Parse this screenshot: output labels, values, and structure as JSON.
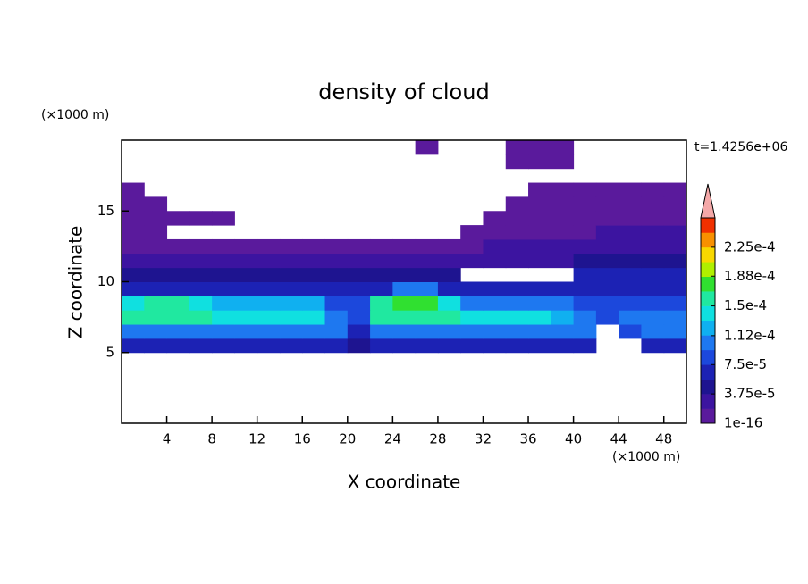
{
  "chart_data": {
    "type": "contour",
    "title": "density of cloud",
    "x_label": "X coordinate",
    "y_label": "Z coordinate",
    "x_unit": "(×1000 m)",
    "y_unit": "(×1000 m)",
    "annotation": "t=1.4256e+06",
    "xlim": [
      0,
      50
    ],
    "ylim": [
      0,
      20
    ],
    "xticks": [
      4,
      8,
      12,
      16,
      20,
      24,
      28,
      32,
      36,
      40,
      44,
      48
    ],
    "yticks": [
      5,
      10,
      15
    ],
    "colorbar": {
      "clim": [
        0,
        0.0002625
      ],
      "ticks": [
        {
          "value": 1e-16,
          "label": "1e-16"
        },
        {
          "value": 3.75e-05,
          "label": "3.75e-5"
        },
        {
          "value": 7.5e-05,
          "label": "7.5e-5"
        },
        {
          "value": 0.000112,
          "label": "1.12e-4"
        },
        {
          "value": 0.00015,
          "label": "1.5e-4"
        },
        {
          "value": 0.000188,
          "label": "1.88e-4"
        },
        {
          "value": 0.000225,
          "label": "2.25e-4"
        }
      ],
      "colors": [
        "#5a1a9c",
        "#3c14a0",
        "#1e1490",
        "#1c22b4",
        "#1c48dc",
        "#1e78f0",
        "#10b0f0",
        "#10e0e0",
        "#20e8a0",
        "#30e030",
        "#b0f000",
        "#f8d800",
        "#f89000",
        "#f03000"
      ],
      "extend_color": "#f4a8a8"
    },
    "field": {
      "x": [
        1,
        3,
        5,
        7,
        9,
        11,
        13,
        15,
        17,
        19,
        21,
        23,
        25,
        27,
        29,
        31,
        33,
        35,
        37,
        39,
        41,
        43,
        45,
        47,
        49
      ],
      "z": [
        5.5,
        6.5,
        7.5,
        8.5,
        9.5,
        10.5,
        11.5,
        12.5,
        13.5,
        14.5,
        15.5,
        16.5,
        17.5,
        18.5,
        19.5
      ],
      "values": [
        [
          6.5e-05,
          6.5e-05,
          6.5e-05,
          6.5e-05,
          6.5e-05,
          6.5e-05,
          6.5e-05,
          6.5e-05,
          6.5e-05,
          6.5e-05,
          4.5e-05,
          6.5e-05,
          6.5e-05,
          6.5e-05,
          6.5e-05,
          6.5e-05,
          6.5e-05,
          6.5e-05,
          6.5e-05,
          6.5e-05,
          6.5e-05,
          null,
          null,
          6.5e-05,
          6.5e-05
        ],
        [
          0.000105,
          0.000105,
          0.000105,
          0.000105,
          0.000105,
          0.000105,
          0.000105,
          0.000105,
          0.000105,
          0.000105,
          6.5e-05,
          0.000105,
          0.000105,
          0.000105,
          0.000105,
          0.000105,
          0.000105,
          0.000105,
          0.000105,
          0.000105,
          0.000105,
          null,
          8.5e-05,
          0.000105,
          0.000105
        ],
        [
          0.00016,
          0.00016,
          0.00016,
          0.00016,
          0.00014,
          0.00014,
          0.00014,
          0.00014,
          0.00014,
          0.000105,
          8.5e-05,
          0.00016,
          0.00016,
          0.00016,
          0.00016,
          0.00014,
          0.00014,
          0.00014,
          0.00014,
          0.00012,
          0.000105,
          8.5e-05,
          0.000105,
          0.000105,
          0.000105
        ],
        [
          0.00014,
          0.00016,
          0.00016,
          0.00014,
          0.00012,
          0.00012,
          0.00012,
          0.00012,
          0.00012,
          8.5e-05,
          8.5e-05,
          0.00016,
          0.00018,
          0.00018,
          0.00014,
          0.000105,
          0.000105,
          0.000105,
          0.000105,
          0.000105,
          8.5e-05,
          8.5e-05,
          8.5e-05,
          8.5e-05,
          8.5e-05
        ],
        [
          6.5e-05,
          6.5e-05,
          6.5e-05,
          6.5e-05,
          6.5e-05,
          6.5e-05,
          6.5e-05,
          6.5e-05,
          6.5e-05,
          6.5e-05,
          6.5e-05,
          6.5e-05,
          0.000105,
          0.000105,
          6.5e-05,
          6.5e-05,
          6.5e-05,
          6.5e-05,
          6.5e-05,
          6.5e-05,
          6.5e-05,
          6.5e-05,
          6.5e-05,
          6.5e-05,
          6.5e-05
        ],
        [
          4.5e-05,
          4.5e-05,
          4.5e-05,
          4.5e-05,
          4.5e-05,
          4.5e-05,
          4.5e-05,
          4.5e-05,
          4.5e-05,
          4.5e-05,
          4.5e-05,
          4.5e-05,
          4.5e-05,
          4.5e-05,
          4.5e-05,
          null,
          null,
          null,
          null,
          null,
          6.5e-05,
          6.5e-05,
          6.5e-05,
          6.5e-05,
          6.5e-05
        ],
        [
          3e-05,
          3e-05,
          3e-05,
          3e-05,
          3e-05,
          3e-05,
          3e-05,
          3e-05,
          3e-05,
          3e-05,
          3e-05,
          3e-05,
          3e-05,
          3e-05,
          3e-05,
          3e-05,
          3e-05,
          3e-05,
          3e-05,
          3e-05,
          4.5e-05,
          4.5e-05,
          4.5e-05,
          4.5e-05,
          4.5e-05
        ],
        [
          1e-05,
          1e-05,
          1e-05,
          1e-05,
          1e-05,
          1e-05,
          1e-05,
          1e-05,
          1e-05,
          1e-05,
          1e-05,
          1e-05,
          1e-05,
          1e-05,
          1e-05,
          1e-05,
          3e-05,
          3e-05,
          3e-05,
          3e-05,
          3e-05,
          3e-05,
          3e-05,
          3e-05,
          3e-05
        ],
        [
          1e-05,
          1e-05,
          null,
          null,
          null,
          null,
          null,
          null,
          null,
          null,
          null,
          null,
          null,
          null,
          null,
          1e-05,
          1e-05,
          1e-05,
          1e-05,
          1e-05,
          1e-05,
          3e-05,
          3e-05,
          3e-05,
          3e-05
        ],
        [
          1e-05,
          1e-05,
          1e-05,
          1e-05,
          1e-05,
          null,
          null,
          null,
          null,
          null,
          null,
          null,
          null,
          null,
          null,
          null,
          1e-05,
          1e-05,
          1e-05,
          1e-05,
          1e-05,
          1e-05,
          1e-05,
          1e-05,
          1e-05
        ],
        [
          1e-05,
          1e-05,
          null,
          null,
          null,
          null,
          null,
          null,
          null,
          null,
          null,
          null,
          null,
          null,
          null,
          null,
          null,
          1e-05,
          1e-05,
          1e-05,
          1e-05,
          1e-05,
          1e-05,
          1e-05,
          1e-05
        ],
        [
          1e-05,
          null,
          null,
          null,
          null,
          null,
          null,
          null,
          null,
          null,
          null,
          null,
          null,
          null,
          null,
          null,
          null,
          null,
          1e-05,
          1e-05,
          1e-05,
          1e-05,
          1e-05,
          1e-05,
          1e-05
        ],
        [
          null,
          null,
          null,
          null,
          null,
          null,
          null,
          null,
          null,
          null,
          null,
          null,
          null,
          null,
          null,
          null,
          null,
          null,
          null,
          null,
          null,
          null,
          null,
          null,
          null
        ],
        [
          null,
          null,
          null,
          null,
          null,
          null,
          null,
          null,
          null,
          null,
          null,
          null,
          null,
          null,
          null,
          null,
          null,
          1e-05,
          1e-05,
          1e-05,
          null,
          null,
          null,
          null,
          null
        ],
        [
          null,
          null,
          null,
          null,
          null,
          null,
          null,
          null,
          null,
          null,
          null,
          null,
          null,
          1e-05,
          null,
          null,
          null,
          1e-05,
          1e-05,
          1e-05,
          null,
          null,
          null,
          null,
          null
        ]
      ]
    }
  }
}
